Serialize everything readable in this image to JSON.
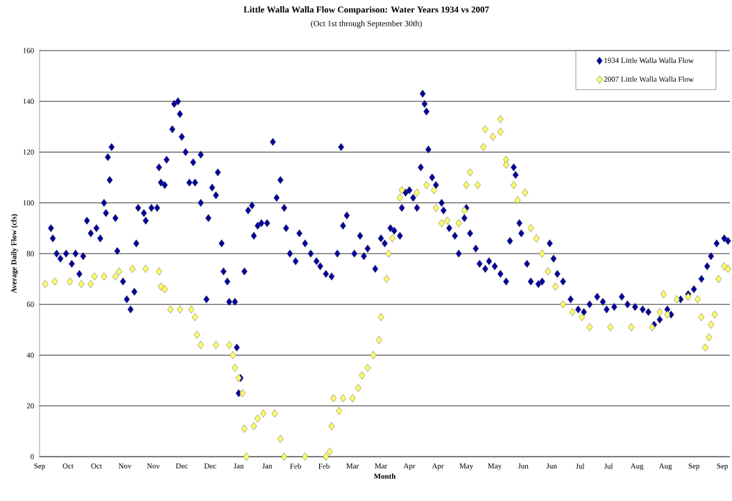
{
  "chart_data": {
    "type": "scatter",
    "title": "Little Walla Walla Flow Comparison: Water Years 1934 vs 2007",
    "subtitle": "(Oct 1st through September 30th)",
    "xlabel": "Month",
    "ylabel": "Average Daily Flow (cfs)",
    "xlim": [
      "2006-09-30",
      "2007-09-29"
    ],
    "ylim": [
      0,
      160
    ],
    "yticks": [
      0,
      20,
      40,
      60,
      80,
      100,
      120,
      140,
      160
    ],
    "xticks": [
      {
        "value": "2006-09-30",
        "label": "Sep"
      },
      {
        "value": "2006-10-15",
        "label": "Oct"
      },
      {
        "value": "2006-10-30",
        "label": "Oct"
      },
      {
        "value": "2006-11-14",
        "label": "Nov"
      },
      {
        "value": "2006-11-29",
        "label": "Nov"
      },
      {
        "value": "2006-12-14",
        "label": "Dec"
      },
      {
        "value": "2006-12-29",
        "label": "Dec"
      },
      {
        "value": "2007-01-13",
        "label": "Jan"
      },
      {
        "value": "2007-01-28",
        "label": "Jan"
      },
      {
        "value": "2007-02-12",
        "label": "Feb"
      },
      {
        "value": "2007-02-27",
        "label": "Feb"
      },
      {
        "value": "2007-03-14",
        "label": "Mar"
      },
      {
        "value": "2007-03-29",
        "label": "Mar"
      },
      {
        "value": "2007-04-13",
        "label": "Apr"
      },
      {
        "value": "2007-04-28",
        "label": "Apr"
      },
      {
        "value": "2007-05-13",
        "label": "May"
      },
      {
        "value": "2007-05-28",
        "label": "May"
      },
      {
        "value": "2007-06-12",
        "label": "Jun"
      },
      {
        "value": "2007-06-27",
        "label": "Jun"
      },
      {
        "value": "2007-07-12",
        "label": "Jul"
      },
      {
        "value": "2007-07-27",
        "label": "Jul"
      },
      {
        "value": "2007-08-11",
        "label": "Aug"
      },
      {
        "value": "2007-08-26",
        "label": "Aug"
      },
      {
        "value": "2007-09-10",
        "label": "Sep"
      },
      {
        "value": "2007-09-25",
        "label": "Sep"
      }
    ],
    "grid": "y",
    "legend": "top right",
    "marker": "diamond",
    "series": [
      {
        "name": "1934 Little Walla Walla Flow",
        "color": "#00009c",
        "x": [
          "2006-10-06",
          "2006-10-07",
          "2006-10-09",
          "2006-10-11",
          "2006-10-14",
          "2006-10-17",
          "2006-10-19",
          "2006-10-21",
          "2006-10-23",
          "2006-10-25",
          "2006-10-27",
          "2006-10-30",
          "2006-11-01",
          "2006-11-03",
          "2006-11-04",
          "2006-11-05",
          "2006-11-06",
          "2006-11-07",
          "2006-11-09",
          "2006-11-10",
          "2006-11-13",
          "2006-11-15",
          "2006-11-17",
          "2006-11-19",
          "2006-11-20",
          "2006-11-21",
          "2006-11-24",
          "2006-11-25",
          "2006-11-28",
          "2006-12-01",
          "2006-12-02",
          "2006-12-03",
          "2006-12-05",
          "2006-12-06",
          "2006-12-09",
          "2006-12-10",
          "2006-12-12",
          "2006-12-13",
          "2006-12-14",
          "2006-12-16",
          "2006-12-18",
          "2006-12-20",
          "2006-12-21",
          "2006-12-24",
          "2006-12-24",
          "2006-12-27",
          "2006-12-28",
          "2006-12-30",
          "2007-01-01",
          "2007-01-02",
          "2007-01-04",
          "2007-01-05",
          "2007-01-07",
          "2007-01-08",
          "2007-01-11",
          "2007-01-12",
          "2007-01-13",
          "2007-01-14",
          "2007-01-16",
          "2007-01-18",
          "2007-01-20",
          "2007-01-21",
          "2007-01-23",
          "2007-01-25",
          "2007-01-28",
          "2007-01-31",
          "2007-02-02",
          "2007-02-04",
          "2007-02-06",
          "2007-02-07",
          "2007-02-09",
          "2007-02-12",
          "2007-02-14",
          "2007-02-17",
          "2007-02-20",
          "2007-02-23",
          "2007-02-25",
          "2007-02-28",
          "2007-03-03",
          "2007-03-06",
          "2007-03-08",
          "2007-03-09",
          "2007-03-11",
          "2007-03-15",
          "2007-03-18",
          "2007-03-20",
          "2007-03-22",
          "2007-03-26",
          "2007-03-29",
          "2007-03-31",
          "2007-04-03",
          "2007-04-05",
          "2007-04-08",
          "2007-04-09",
          "2007-04-11",
          "2007-04-13",
          "2007-04-15",
          "2007-04-17",
          "2007-04-19",
          "2007-04-20",
          "2007-04-21",
          "2007-04-22",
          "2007-04-23",
          "2007-04-25",
          "2007-04-27",
          "2007-04-30",
          "2007-05-01",
          "2007-05-04",
          "2007-05-07",
          "2007-05-09",
          "2007-05-12",
          "2007-05-13",
          "2007-05-15",
          "2007-05-18",
          "2007-05-20",
          "2007-05-23",
          "2007-05-25",
          "2007-05-28",
          "2007-05-31",
          "2007-06-03",
          "2007-06-05",
          "2007-06-07",
          "2007-06-08",
          "2007-06-10",
          "2007-06-11",
          "2007-06-14",
          "2007-06-16",
          "2007-06-20",
          "2007-06-22",
          "2007-06-26",
          "2007-06-28",
          "2007-06-30",
          "2007-07-03",
          "2007-07-07",
          "2007-07-11",
          "2007-07-14",
          "2007-07-17",
          "2007-07-21",
          "2007-07-24",
          "2007-07-26",
          "2007-07-30",
          "2007-08-03",
          "2007-08-06",
          "2007-08-10",
          "2007-08-14",
          "2007-08-17",
          "2007-08-20",
          "2007-08-23",
          "2007-08-27",
          "2007-08-29",
          "2007-09-03",
          "2007-09-07",
          "2007-09-10",
          "2007-09-14",
          "2007-09-17",
          "2007-09-19",
          "2007-09-22",
          "2007-09-26",
          "2007-09-28"
        ],
        "values": [
          90,
          86,
          80,
          78,
          80,
          76,
          80,
          72,
          79,
          93,
          88,
          90,
          86,
          100,
          96,
          118,
          109,
          122,
          94,
          81,
          69,
          62,
          58,
          65,
          84,
          98,
          96,
          93,
          98,
          98,
          114,
          108,
          107,
          117,
          129,
          139,
          140,
          135,
          126,
          120,
          108,
          116,
          108,
          119,
          100,
          62,
          94,
          106,
          103,
          112,
          84,
          73,
          69,
          61,
          61,
          43,
          25,
          31,
          73,
          97,
          99,
          87,
          91,
          92,
          92,
          124,
          102,
          109,
          98,
          90,
          80,
          77,
          88,
          84,
          80,
          77,
          75,
          72,
          71,
          80,
          122,
          91,
          95,
          80,
          87,
          79,
          82,
          74,
          86,
          84,
          90,
          89,
          87,
          98,
          104,
          105,
          102,
          98,
          114,
          143,
          139,
          136,
          121,
          110,
          107,
          100,
          97,
          90,
          87,
          80,
          94,
          98,
          88,
          82,
          76,
          74,
          77,
          75,
          72,
          69,
          85,
          114,
          111,
          92,
          88,
          76,
          69,
          68,
          69,
          84,
          78,
          72,
          69,
          62,
          58,
          57,
          60,
          63,
          61,
          58,
          59,
          63,
          60,
          59,
          58,
          57,
          52,
          54,
          58,
          56,
          62,
          64,
          66,
          70,
          75,
          79,
          84,
          86,
          85
        ]
      },
      {
        "name": "2007 Little Walla Walla Flow",
        "color": "#ffff66",
        "x": [
          "2006-10-03",
          "2006-10-08",
          "2006-10-16",
          "2006-10-22",
          "2006-10-27",
          "2006-10-29",
          "2006-11-03",
          "2006-11-09",
          "2006-11-11",
          "2006-11-18",
          "2006-11-25",
          "2006-12-02",
          "2006-12-03",
          "2006-12-05",
          "2006-12-08",
          "2006-12-13",
          "2006-12-19",
          "2006-12-21",
          "2006-12-22",
          "2006-12-24",
          "2007-01-01",
          "2007-01-08",
          "2007-01-10",
          "2007-01-11",
          "2007-01-13",
          "2007-01-15",
          "2007-01-16",
          "2007-01-17",
          "2007-01-21",
          "2007-01-23",
          "2007-01-26",
          "2007-02-01",
          "2007-02-04",
          "2007-02-06",
          "2007-02-17",
          "2007-02-28",
          "2007-03-02",
          "2007-03-03",
          "2007-03-04",
          "2007-03-07",
          "2007-03-09",
          "2007-03-14",
          "2007-03-17",
          "2007-03-19",
          "2007-03-22",
          "2007-03-25",
          "2007-03-28",
          "2007-03-29",
          "2007-04-01",
          "2007-04-02",
          "2007-04-04",
          "2007-04-08",
          "2007-04-09",
          "2007-04-17",
          "2007-04-22",
          "2007-04-26",
          "2007-04-27",
          "2007-04-30",
          "2007-05-03",
          "2007-05-09",
          "2007-05-12",
          "2007-05-13",
          "2007-05-15",
          "2007-05-19",
          "2007-05-22",
          "2007-05-23",
          "2007-05-27",
          "2007-05-31",
          "2007-05-31",
          "2007-06-03",
          "2007-06-03",
          "2007-06-07",
          "2007-06-09",
          "2007-06-13",
          "2007-06-16",
          "2007-06-19",
          "2007-06-22",
          "2007-06-25",
          "2007-06-29",
          "2007-07-03",
          "2007-07-08",
          "2007-07-13",
          "2007-07-17",
          "2007-07-28",
          "2007-08-08",
          "2007-08-19",
          "2007-08-23",
          "2007-08-25",
          "2007-08-27",
          "2007-09-01",
          "2007-09-07",
          "2007-09-12",
          "2007-09-14",
          "2007-09-16",
          "2007-09-18",
          "2007-09-19",
          "2007-09-21",
          "2007-09-23",
          "2007-09-26",
          "2007-09-28"
        ],
        "values": [
          68,
          69,
          69,
          68,
          68,
          71,
          71,
          71,
          73,
          74,
          74,
          73,
          67,
          66,
          58,
          58,
          58,
          55,
          48,
          44,
          44,
          44,
          40,
          35,
          31,
          25,
          11,
          0,
          12,
          15,
          17,
          17,
          7,
          0,
          0,
          0,
          2,
          12,
          23,
          18,
          23,
          23,
          27,
          32,
          35,
          40,
          46,
          55,
          70,
          80,
          86,
          102,
          105,
          104,
          107,
          105,
          98,
          92,
          93,
          92,
          97,
          107,
          112,
          107,
          122,
          129,
          126,
          133,
          128,
          117,
          115,
          107,
          101,
          104,
          90,
          86,
          80,
          73,
          67,
          60,
          57,
          55,
          51,
          51,
          51,
          51,
          57,
          64,
          56,
          62,
          63,
          62,
          55,
          43,
          47,
          52,
          56,
          70,
          75,
          74
        ]
      }
    ]
  }
}
